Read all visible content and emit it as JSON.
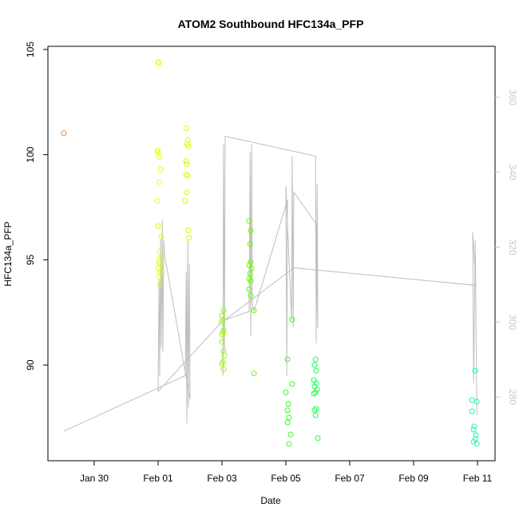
{
  "chart_data": {
    "type": "scatter",
    "title": "ATOM2 Southbound HFC134a_PFP",
    "x_label": "Date",
    "y_label": "HFC134a_PFP",
    "xlim": [
      28.55,
      42.55
    ],
    "xticks": [
      {
        "value": 30,
        "label": "Jan 30"
      },
      {
        "value": 32,
        "label": "Feb 01"
      },
      {
        "value": 34,
        "label": "Feb 03"
      },
      {
        "value": 36,
        "label": "Feb 05"
      },
      {
        "value": 38,
        "label": "Feb 07"
      },
      {
        "value": 40,
        "label": "Feb 09"
      },
      {
        "value": 42,
        "label": "Feb 11"
      }
    ],
    "ylim": [
      85.45,
      105.15
    ],
    "yticks": [
      90,
      95,
      100,
      105
    ],
    "y2lim": [
      263,
      373.6
    ],
    "y2ticks": [
      280,
      300,
      320,
      340,
      360
    ],
    "y2_color": "#c8c8c8",
    "series": [
      {
        "type": "line",
        "axis": "y2",
        "color": "#bebebe",
        "x": [
          29.05,
          32.85,
          32.88,
          32.9,
          32.93,
          32.95,
          32.98,
          33.0,
          32.2,
          32.18,
          32.15,
          32.13,
          32.1,
          32.08,
          32.05,
          32.03,
          32.0,
          34.05,
          34.03,
          34.05,
          34.08,
          34.1,
          36.93,
          36.95,
          36.98,
          37.0,
          36.95,
          36.25,
          36.23,
          36.2,
          36.18,
          36.0,
          36.03,
          36.05,
          35.0,
          34.95,
          34.93,
          34.9,
          34.88,
          34.85,
          34.1,
          36.25,
          41.95,
          41.85,
          41.88,
          41.93,
          41.98
        ],
        "values": [
          270.9,
          285.7,
          313.4,
          273.0,
          321.9,
          277.2,
          315.5,
          279.4,
          318.1,
          321.9,
          292.1,
          327.2,
          293.2,
          321.9,
          285.7,
          311.3,
          281.5,
          300.6,
          285.7,
          347.4,
          292.1,
          349.6,
          344.3,
          294.3,
          336.8,
          298.5,
          326.2,
          334.7,
          298.5,
          344.3,
          300.6,
          336.4,
          285.7,
          332.6,
          302.8,
          304.9,
          347.4,
          296.4,
          345.3,
          302.8,
          300.6,
          314.5,
          309.8,
          324.0,
          283.6,
          321.9,
          275.1
        ]
      },
      {
        "type": "scatter",
        "color": "#ff7f2a",
        "x": [
          29.05
        ],
        "values": [
          101.02
        ]
      },
      {
        "type": "scatter",
        "color": "#e6ff00",
        "x": [
          32.0,
          32.03,
          31.98,
          32.0,
          32.03,
          32.08,
          32.05,
          31.98,
          32.0,
          32.1,
          32.05,
          32.08,
          32.03,
          32.05,
          32.0,
          32.08,
          32.03,
          32.05
        ],
        "values": [
          104.4,
          104.35,
          100.2,
          100.1,
          99.9,
          99.3,
          98.7,
          97.8,
          96.6,
          96.1,
          95.4,
          95.1,
          94.9,
          94.8,
          94.6,
          94.4,
          94.2,
          93.8
        ]
      },
      {
        "type": "scatter",
        "color": "#d4ff00",
        "x": [
          32.88,
          32.93,
          32.9,
          32.95,
          32.88,
          32.9,
          32.88,
          32.93,
          32.9,
          32.85,
          32.95,
          32.97
        ],
        "values": [
          101.25,
          100.7,
          100.5,
          100.4,
          99.7,
          99.55,
          99.05,
          99.0,
          98.2,
          97.8,
          96.4,
          96.05
        ]
      },
      {
        "type": "scatter",
        "color": "#99ff00",
        "x": [
          34.05,
          34.0,
          34.03,
          33.98,
          34.05,
          34.03,
          34.0,
          34.0,
          34.05,
          34.08,
          34.03,
          34.0,
          34.05
        ],
        "values": [
          92.6,
          92.35,
          92.15,
          92.05,
          91.65,
          91.55,
          91.45,
          91.1,
          90.65,
          90.45,
          90.15,
          90.05,
          89.8
        ]
      },
      {
        "type": "scatter",
        "color": "#66ff00",
        "x": [
          34.85,
          34.9,
          34.88,
          34.9,
          34.85,
          34.93,
          34.88,
          34.85,
          34.9,
          34.85,
          34.9,
          35.0,
          35.0
        ],
        "values": [
          96.85,
          96.4,
          95.75,
          94.9,
          94.75,
          94.6,
          94.35,
          94.1,
          94.0,
          93.6,
          93.3,
          92.6,
          89.6
        ]
      },
      {
        "type": "scatter",
        "color": "#33ff1a",
        "x": [
          36.05,
          36.0,
          36.08,
          36.05,
          36.1,
          36.05,
          36.15,
          36.1,
          36.2,
          36.2
        ],
        "values": [
          90.27,
          88.7,
          88.15,
          87.85,
          87.5,
          87.27,
          86.7,
          86.25,
          92.16,
          89.1
        ]
      },
      {
        "type": "scatter",
        "color": "#1aff4d",
        "x": [
          36.93,
          36.9,
          36.95,
          36.88,
          36.95,
          36.9,
          36.98,
          36.93,
          36.88,
          36.95,
          36.9,
          36.93,
          37.0
        ],
        "values": [
          90.27,
          90.0,
          89.73,
          89.28,
          89.13,
          88.98,
          88.83,
          88.7,
          88.64,
          87.92,
          87.85,
          87.61,
          86.52
        ]
      },
      {
        "type": "scatter",
        "color": "#1affa8",
        "x": [
          41.93,
          41.83,
          41.98,
          41.83,
          41.9,
          41.88,
          41.95,
          41.93,
          41.88,
          41.98
        ],
        "values": [
          89.73,
          88.33,
          88.26,
          87.8,
          87.08,
          86.93,
          86.67,
          86.48,
          86.36,
          86.25
        ]
      }
    ]
  }
}
